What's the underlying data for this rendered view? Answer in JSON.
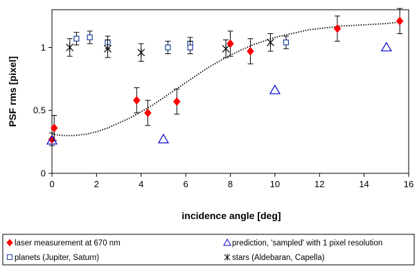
{
  "chart_data": {
    "type": "scatter",
    "title": "",
    "xlabel": "incidence angle [deg]",
    "ylabel": "PSF rms [pixel]",
    "xlim": [
      0,
      16
    ],
    "ylim": [
      0,
      1.3
    ],
    "xticks": [
      0,
      2,
      4,
      6,
      8,
      10,
      12,
      14,
      16
    ],
    "yticks": [
      0,
      0.5,
      1
    ],
    "ytick_labels": [
      "0",
      "0.5",
      "1"
    ],
    "grid": false,
    "legend_position": "bottom",
    "series": [
      {
        "name": "laser measurement at 670 nm",
        "marker": "diamond",
        "color": "#ff0000",
        "points": [
          {
            "x": 0.0,
            "y": 0.27,
            "err": 0.05
          },
          {
            "x": 0.1,
            "y": 0.36,
            "err": 0.1
          },
          {
            "x": 3.8,
            "y": 0.58,
            "err": 0.1
          },
          {
            "x": 4.3,
            "y": 0.48,
            "err": 0.1
          },
          {
            "x": 5.6,
            "y": 0.57,
            "err": 0.1
          },
          {
            "x": 8.0,
            "y": 1.03,
            "err": 0.1
          },
          {
            "x": 8.9,
            "y": 0.97,
            "err": 0.1
          },
          {
            "x": 12.8,
            "y": 1.15,
            "err": 0.1
          },
          {
            "x": 15.6,
            "y": 1.21,
            "err": 0.1
          }
        ]
      },
      {
        "name": "prediction, 'sampled' with 1 pixel resolution",
        "marker": "triangle",
        "color": "#0000cc",
        "points": [
          {
            "x": 0.0,
            "y": 0.26
          },
          {
            "x": 5.0,
            "y": 0.27
          },
          {
            "x": 10.0,
            "y": 0.66
          },
          {
            "x": 15.0,
            "y": 1.0
          }
        ]
      },
      {
        "name": "planets (Jupiter, Saturn)",
        "marker": "square",
        "color": "#1f3fa0",
        "points": [
          {
            "x": 1.1,
            "y": 1.07,
            "err": 0.05
          },
          {
            "x": 1.7,
            "y": 1.08,
            "err": 0.05
          },
          {
            "x": 2.5,
            "y": 1.04,
            "err": 0.05
          },
          {
            "x": 5.2,
            "y": 1.0,
            "err": 0.05
          },
          {
            "x": 6.2,
            "y": 1.03,
            "err": 0.05
          },
          {
            "x": 6.2,
            "y": 1.0,
            "err": 0.05
          },
          {
            "x": 10.5,
            "y": 1.04,
            "err": 0.05
          }
        ]
      },
      {
        "name": "stars (Aldebaran, Capella)",
        "marker": "star",
        "color": "#000000",
        "points": [
          {
            "x": 0.8,
            "y": 1.0,
            "err": 0.07
          },
          {
            "x": 2.5,
            "y": 0.99,
            "err": 0.07
          },
          {
            "x": 4.0,
            "y": 0.96,
            "err": 0.07
          },
          {
            "x": 7.8,
            "y": 0.99,
            "err": 0.07
          },
          {
            "x": 9.8,
            "y": 1.04,
            "err": 0.07
          }
        ]
      }
    ],
    "trend_curve": {
      "style": "dotted",
      "color": "#000000",
      "points": [
        {
          "x": 0,
          "y": 0.31
        },
        {
          "x": 0.5,
          "y": 0.3
        },
        {
          "x": 1,
          "y": 0.3
        },
        {
          "x": 1.5,
          "y": 0.31
        },
        {
          "x": 2,
          "y": 0.33
        },
        {
          "x": 2.5,
          "y": 0.36
        },
        {
          "x": 3,
          "y": 0.4
        },
        {
          "x": 3.5,
          "y": 0.44
        },
        {
          "x": 4,
          "y": 0.49
        },
        {
          "x": 4.5,
          "y": 0.54
        },
        {
          "x": 5,
          "y": 0.6
        },
        {
          "x": 5.5,
          "y": 0.66
        },
        {
          "x": 6,
          "y": 0.72
        },
        {
          "x": 6.5,
          "y": 0.78
        },
        {
          "x": 7,
          "y": 0.84
        },
        {
          "x": 7.5,
          "y": 0.89
        },
        {
          "x": 8,
          "y": 0.94
        },
        {
          "x": 8.5,
          "y": 0.98
        },
        {
          "x": 9,
          "y": 1.02
        },
        {
          "x": 9.5,
          "y": 1.05
        },
        {
          "x": 10,
          "y": 1.08
        },
        {
          "x": 10.5,
          "y": 1.1
        },
        {
          "x": 11,
          "y": 1.12
        },
        {
          "x": 11.5,
          "y": 1.14
        },
        {
          "x": 12,
          "y": 1.15
        },
        {
          "x": 12.5,
          "y": 1.16
        },
        {
          "x": 13,
          "y": 1.17
        },
        {
          "x": 13.5,
          "y": 1.175
        },
        {
          "x": 14,
          "y": 1.18
        },
        {
          "x": 14.5,
          "y": 1.185
        },
        {
          "x": 15,
          "y": 1.19
        },
        {
          "x": 15.5,
          "y": 1.2
        }
      ]
    }
  }
}
